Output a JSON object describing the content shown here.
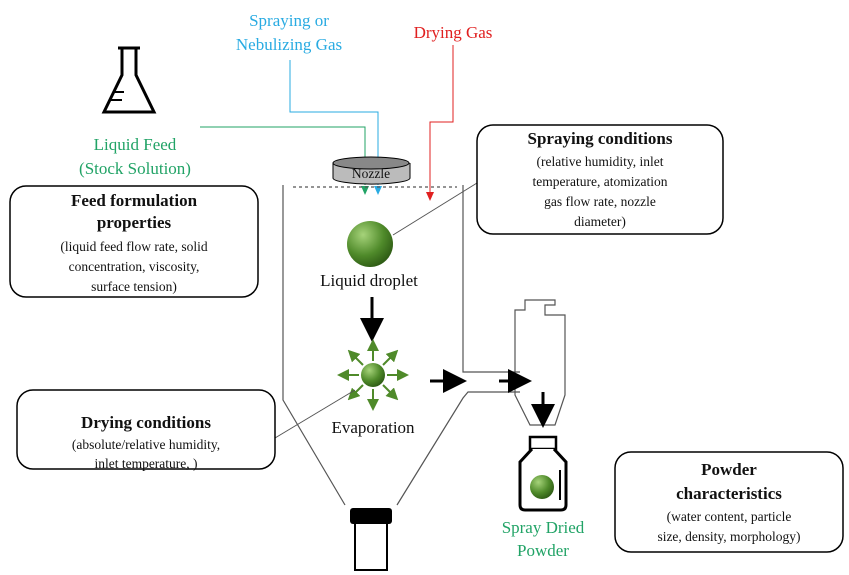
{
  "inputs": {
    "spraying_gas": [
      "Spraying or",
      "Nebulizing Gas"
    ],
    "drying_gas": "Drying Gas",
    "liquid_feed": [
      "Liquid Feed",
      "(Stock Solution)"
    ]
  },
  "apparatus": {
    "nozzle": "Nozzle",
    "droplet": "Liquid droplet",
    "evaporation": "Evaporation",
    "product": [
      "Spray Dried",
      "Powder"
    ]
  },
  "boxes": [
    {
      "title": [
        "Spraying conditions"
      ],
      "body": [
        "(relative humidity, inlet",
        "temperature, atomization",
        "gas flow rate, nozzle",
        "diameter)"
      ]
    },
    {
      "title": [
        "Feed formulation",
        "properties"
      ],
      "body": [
        "(liquid feed flow rate, solid",
        "concentration, viscosity,",
        "surface tension)"
      ]
    },
    {
      "title": [
        "Drying conditions"
      ],
      "body": [
        "(absolute/relative humidity,",
        "inlet temperature, )"
      ]
    },
    {
      "title": [
        "Powder",
        "characteristics"
      ],
      "body": [
        "(water content, particle",
        "size, density, morphology)"
      ]
    }
  ]
}
